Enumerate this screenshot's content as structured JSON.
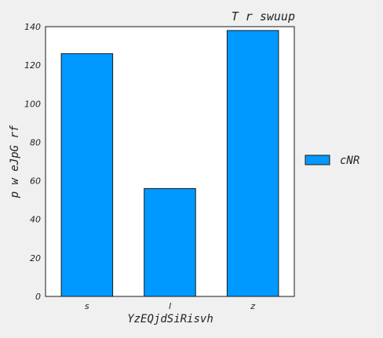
{
  "chart_data": {
    "type": "bar",
    "title": "T r swuup",
    "xlabel": "YzEQjdSiRisvh",
    "ylabel": "p w eJpG rf",
    "categories": [
      "s",
      "l",
      "z"
    ],
    "series": [
      {
        "name": "cNR",
        "values": [
          126,
          56,
          138
        ]
      }
    ],
    "ylim": [
      0,
      140
    ],
    "yticks": [
      0,
      20,
      40,
      60,
      80,
      100,
      120,
      140
    ],
    "grid": false,
    "legend": "right",
    "colors": {
      "bar": "#0099ff",
      "edge": "#1a1a1a",
      "plot_bg": "#ffffff",
      "page_bg": "#f0f0f0"
    }
  }
}
